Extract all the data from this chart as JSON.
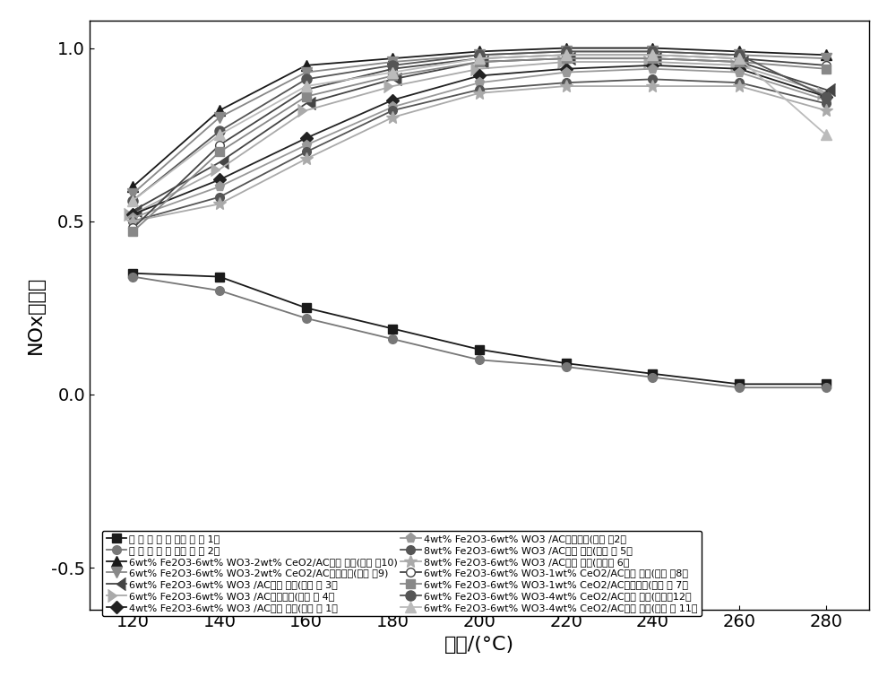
{
  "x": [
    120,
    140,
    160,
    180,
    200,
    220,
    240,
    260,
    280
  ],
  "series": [
    {
      "label": "木 质 活 性 炭 （对 比 例 1）",
      "values": [
        0.35,
        0.34,
        0.25,
        0.19,
        0.13,
        0.09,
        0.06,
        0.03,
        0.03
      ],
      "color": "#1a1a1a",
      "marker": "s",
      "ms": 7,
      "mfc": "#1a1a1a"
    },
    {
      "label": "煮 质 活 性 炭 （对 比 例 2）",
      "values": [
        0.34,
        0.3,
        0.22,
        0.16,
        0.1,
        0.08,
        0.05,
        0.02,
        0.02
      ],
      "color": "#777777",
      "marker": "o",
      "ms": 7,
      "mfc": "#777777"
    },
    {
      "label": "6wt% Fe2O3-6wt% WO3-2wt% CeO2/AC（木 质）(实施 例10)",
      "values": [
        0.6,
        0.82,
        0.95,
        0.97,
        0.99,
        1.0,
        1.0,
        0.99,
        0.98
      ],
      "color": "#1a1a1a",
      "marker": "^",
      "ms": 8,
      "mfc": "#1a1a1a"
    },
    {
      "label": "6wt% Fe2O3-6wt% WO3-2wt% CeO2/AC（煮质）(实施 例9)",
      "values": [
        0.58,
        0.8,
        0.93,
        0.96,
        0.98,
        0.99,
        0.99,
        0.98,
        0.97
      ],
      "color": "#888888",
      "marker": "v",
      "ms": 8,
      "mfc": "#888888"
    },
    {
      "label": "6wt% Fe2O3-6wt% WO3 /AC（木 质）(实施 例 3）",
      "values": [
        0.53,
        0.67,
        0.84,
        0.91,
        0.96,
        0.97,
        0.97,
        0.96,
        0.88
      ],
      "color": "#444444",
      "marker": 4,
      "ms": 10,
      "mfc": "#444444"
    },
    {
      "label": "6wt% Fe2O3-6wt% WO3 /AC（煮质）(实施 例 4）",
      "values": [
        0.52,
        0.65,
        0.82,
        0.89,
        0.94,
        0.96,
        0.96,
        0.95,
        0.87
      ],
      "color": "#aaaaaa",
      "marker": 5,
      "ms": 10,
      "mfc": "#aaaaaa"
    },
    {
      "label": "4wt% Fe2O3-6wt% WO3 /AC（木 质）(实施 例 1）",
      "values": [
        0.52,
        0.62,
        0.74,
        0.85,
        0.92,
        0.94,
        0.95,
        0.94,
        0.86
      ],
      "color": "#222222",
      "marker": "D",
      "ms": 7,
      "mfc": "#222222"
    },
    {
      "label": "4wt% Fe2O3-6wt% WO3 /AC（煮质）(实施 例2）",
      "values": [
        0.51,
        0.6,
        0.72,
        0.83,
        0.9,
        0.93,
        0.94,
        0.93,
        0.85
      ],
      "color": "#999999",
      "marker": "p",
      "ms": 8,
      "mfc": "#999999"
    },
    {
      "label": "8wt% Fe2O3-6wt% WO3 /AC（木 质）(实施 例 5）",
      "values": [
        0.5,
        0.57,
        0.7,
        0.82,
        0.88,
        0.9,
        0.91,
        0.9,
        0.84
      ],
      "color": "#555555",
      "marker": "o",
      "ms": 7,
      "mfc": "#555555"
    },
    {
      "label": "8wt% Fe2O3-6wt% WO3 /AC（煮 质）(实施例 6）",
      "values": [
        0.5,
        0.55,
        0.68,
        0.8,
        0.87,
        0.89,
        0.89,
        0.89,
        0.82
      ],
      "color": "#aaaaaa",
      "marker": "*",
      "ms": 10,
      "mfc": "#aaaaaa"
    },
    {
      "label": "6wt% Fe2O3-6wt% WO3-1wt% CeO2/AC（木 质）(实施 例8）",
      "values": [
        0.48,
        0.72,
        0.88,
        0.94,
        0.97,
        0.98,
        0.98,
        0.97,
        0.95
      ],
      "color": "#444444",
      "marker": "o",
      "ms": 7,
      "mfc": "white"
    },
    {
      "label": "6wt% Fe2O3-6wt% WO3-1wt% CeO2/AC（煮质）(实施 例 7）",
      "values": [
        0.47,
        0.7,
        0.86,
        0.92,
        0.96,
        0.97,
        0.97,
        0.96,
        0.94
      ],
      "color": "#888888",
      "marker": "s",
      "ms": 7,
      "mfc": "#888888"
    },
    {
      "label": "6wt% Fe2O3-6wt% WO3-4wt% CeO2/AC（木 质）(实施例12）",
      "values": [
        0.56,
        0.76,
        0.91,
        0.95,
        0.98,
        0.99,
        0.99,
        0.98,
        0.86
      ],
      "color": "#555555",
      "marker": "o",
      "ms": 8,
      "mfc": "#555555"
    },
    {
      "label": "6wt% Fe2O3-6wt% WO3-4wt% CeO2/AC（煮 质）(实施 例 11）",
      "values": [
        0.56,
        0.75,
        0.89,
        0.93,
        0.97,
        0.98,
        0.98,
        0.97,
        0.75
      ],
      "color": "#bbbbbb",
      "marker": "^",
      "ms": 8,
      "mfc": "#bbbbbb"
    }
  ],
  "xlabel": "温度/(°C)",
  "ylabel": "NOx转化率",
  "xlim": [
    110,
    290
  ],
  "ylim": [
    -0.62,
    1.08
  ],
  "xticks": [
    120,
    140,
    160,
    180,
    200,
    220,
    240,
    260,
    280
  ],
  "yticks": [
    -0.5,
    0.0,
    0.5,
    1.0
  ],
  "background_color": "#ffffff",
  "axis_font_size": 16,
  "tick_font_size": 14,
  "legend_font_size": 8,
  "linewidth": 1.3
}
